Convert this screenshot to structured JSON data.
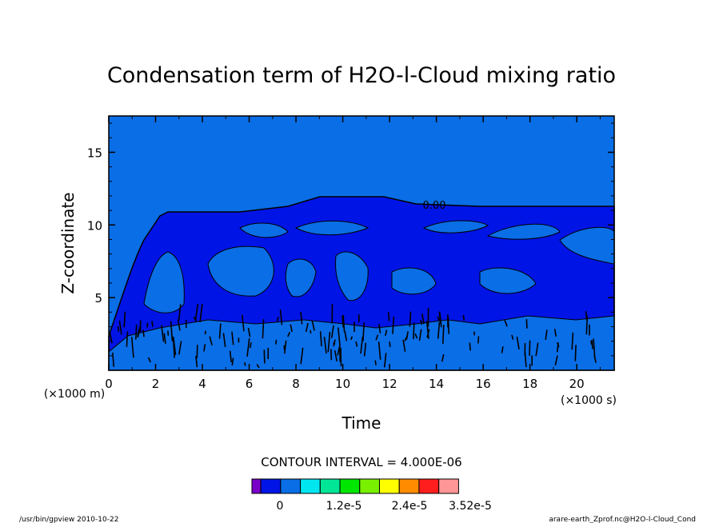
{
  "chart_data": {
    "type": "contour",
    "title": "Condensation term of H2O-l-Cloud mixing ratio",
    "xlabel": "Time",
    "xunit": "(×1000 s)",
    "xlim": [
      0,
      21.6
    ],
    "xticks": [
      "0",
      "2",
      "4",
      "6",
      "8",
      "10",
      "12",
      "14",
      "16",
      "18",
      "20"
    ],
    "ylabel": "Z-coordinate",
    "yunit": "(×1000 m)",
    "ylim": [
      0,
      17.5
    ],
    "yticks": [
      "5",
      "10",
      "15"
    ],
    "contour_label": "0.00",
    "contour_interval_text": "CONTOUR INTERVAL = 4.000E-06",
    "colorbar": {
      "colors": [
        "#7a00c8",
        "#0014e6",
        "#0a6ee6",
        "#00e6f0",
        "#00e696",
        "#00e600",
        "#78f000",
        "#ffff00",
        "#ff8c00",
        "#ff1e1e",
        "#ff9696"
      ],
      "tick_labels": [
        "0",
        "1.2e-5",
        "2.4e-5",
        "3.52e-5"
      ]
    },
    "footer_left": "/usr/bin/gpview   2010-10-22",
    "footer_right": "arare-earth_Zprof.nc@H2O-l-Cloud_Cond"
  }
}
